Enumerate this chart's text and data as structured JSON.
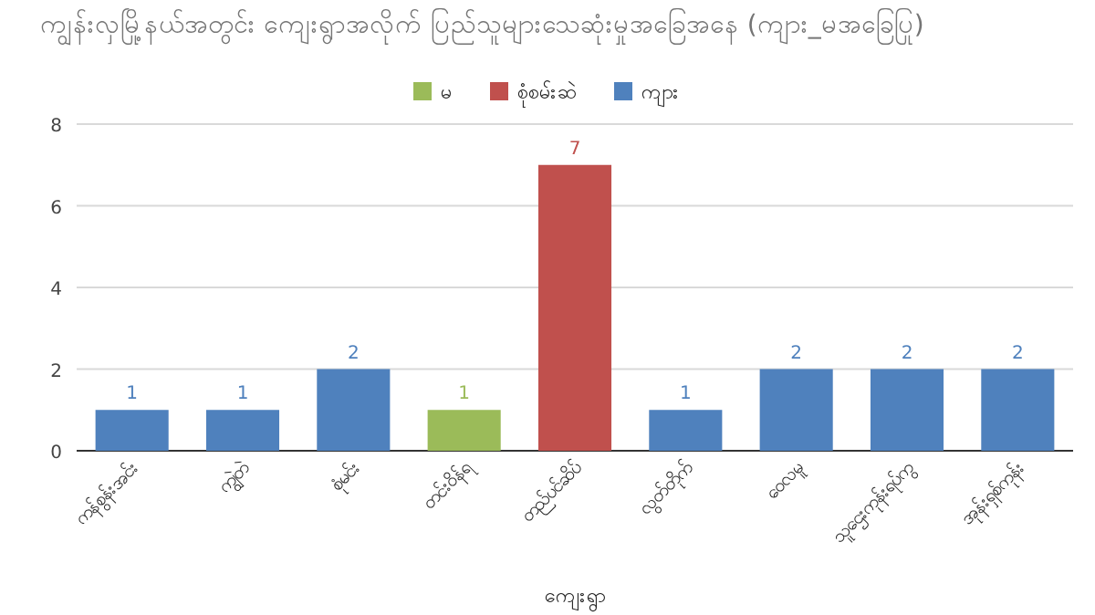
{
  "chart_data": {
    "type": "bar",
    "title": "ကျွန်းလှမြို့နယ်အတွင်း ကျေးရွာအလိုက် ပြည်သူများသေဆုံးမှုအခြေအနေ (ကျား_မအခြေပြု)",
    "xlabel": "ကျေးရွာ",
    "categories": [
      "ကန်စွန်းအင်း",
      "ကျွဲတဲ",
      "စုံမင်း",
      "တင်းဝိန်ရ",
      "တည်ပင်ဆိပ်",
      "လွတ်တိုက်",
      "ဝေလမူ",
      "သူဌေးကုန်းရပ်ကွ",
      "အုန်းရှစ်ကုန်း"
    ],
    "series": [
      {
        "name": "မ",
        "color": "#9bbb59",
        "values": [
          null,
          null,
          null,
          1,
          null,
          null,
          null,
          null,
          null
        ]
      },
      {
        "name": "စုံစမ်းဆဲ",
        "color": "#c0504d",
        "values": [
          null,
          null,
          null,
          null,
          7,
          null,
          null,
          null,
          null
        ]
      },
      {
        "name": "ကျား",
        "color": "#4f81bd",
        "values": [
          1,
          1,
          2,
          null,
          null,
          1,
          2,
          2,
          2
        ]
      }
    ],
    "ylim": [
      0,
      8
    ],
    "yticks": [
      0,
      2,
      4,
      6,
      8
    ],
    "grid": "y",
    "legend": "top",
    "data_labels": true
  }
}
